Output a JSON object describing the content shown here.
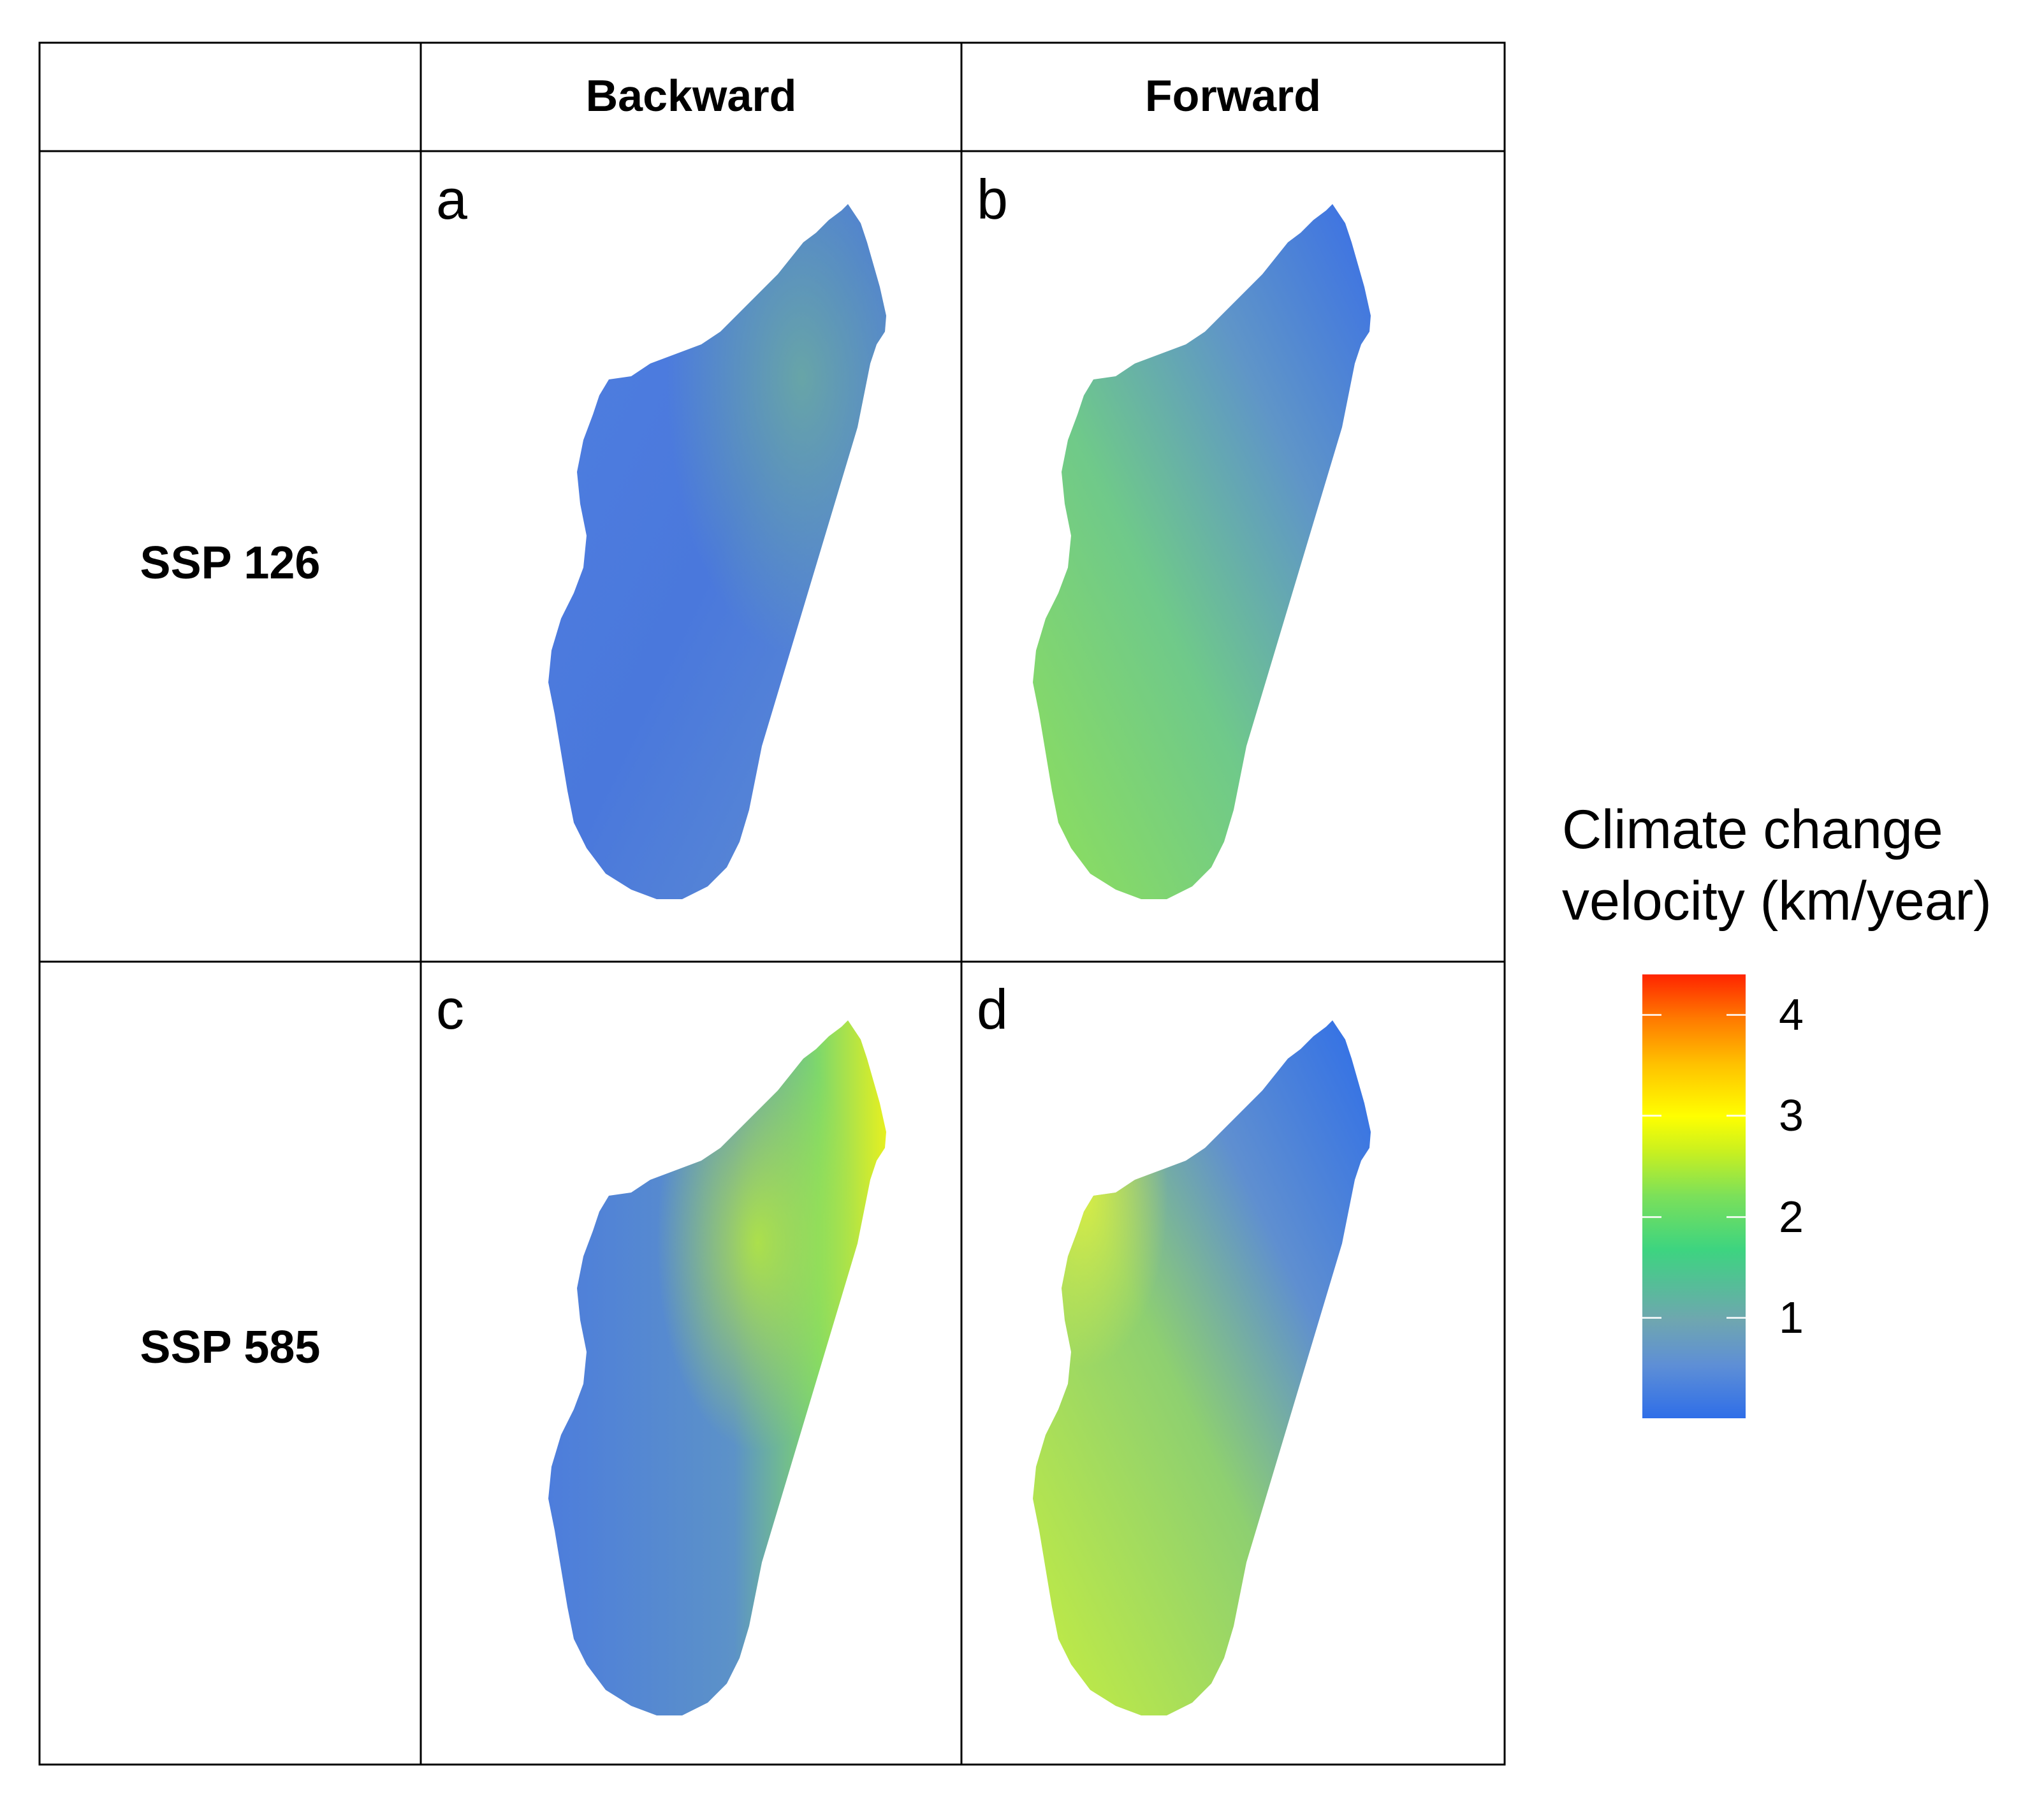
{
  "table": {
    "column_headers": [
      "Backward",
      "Forward"
    ],
    "row_headers": [
      "SSP 126",
      "SSP 585"
    ]
  },
  "panels": [
    {
      "letter": "a",
      "scenario": "SSP 126",
      "direction": "Backward"
    },
    {
      "letter": "b",
      "scenario": "SSP 126",
      "direction": "Forward"
    },
    {
      "letter": "c",
      "scenario": "SSP 585",
      "direction": "Backward"
    },
    {
      "letter": "d",
      "scenario": "SSP 585",
      "direction": "Forward"
    }
  ],
  "legend": {
    "title_line1": "Climate change",
    "title_line2": "velocity (km/year)",
    "ticks": [
      "4",
      "3",
      "2",
      "1"
    ],
    "tick_values": [
      4,
      3,
      2,
      1
    ],
    "range": [
      0,
      4.4
    ],
    "colors": {
      "low": "#2f6ee8",
      "mid": "#3dd480",
      "high_mid": "#ffff00",
      "high": "#ff2400"
    }
  }
}
